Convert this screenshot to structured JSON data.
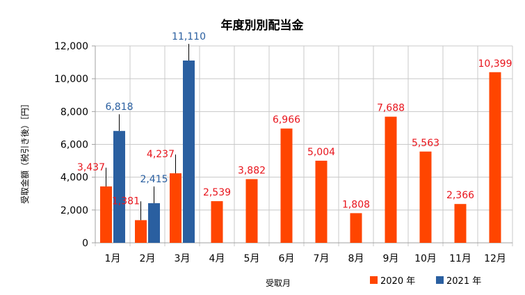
{
  "chart_data": {
    "type": "bar",
    "title": "年度別別配当金",
    "xlabel": "受取月",
    "ylabel": "受取金額（税引き後）［円］",
    "categories": [
      "1月",
      "2月",
      "3月",
      "4月",
      "5月",
      "6月",
      "7月",
      "8月",
      "9月",
      "10月",
      "11月",
      "12月"
    ],
    "ylim": [
      0,
      12000
    ],
    "yticks": [
      "0",
      "2,000",
      "4,000",
      "6,000",
      "8,000",
      "10,000",
      "12,000"
    ],
    "grid": true,
    "legend_position": "bottom-right",
    "series": [
      {
        "name": "2020 年",
        "color": "#FF4500",
        "label_color": "#E8141C",
        "values": [
          3437,
          1381,
          4237,
          2539,
          3882,
          6966,
          5004,
          1808,
          7688,
          5563,
          2366,
          10399
        ],
        "labels": [
          "3,437",
          "1,381",
          "4,237",
          "2,539",
          "3,882",
          "6,966",
          "5,004",
          "1,808",
          "7,688",
          "5,563",
          "2,366",
          "10,399"
        ]
      },
      {
        "name": "2021 年",
        "color": "#2A5FA0",
        "label_color": "#2A5FA0",
        "values": [
          6818,
          2415,
          11110,
          null,
          null,
          null,
          null,
          null,
          null,
          null,
          null,
          null
        ],
        "labels": [
          "6,818",
          "2,415",
          "11,110",
          null,
          null,
          null,
          null,
          null,
          null,
          null,
          null,
          null
        ]
      }
    ]
  }
}
